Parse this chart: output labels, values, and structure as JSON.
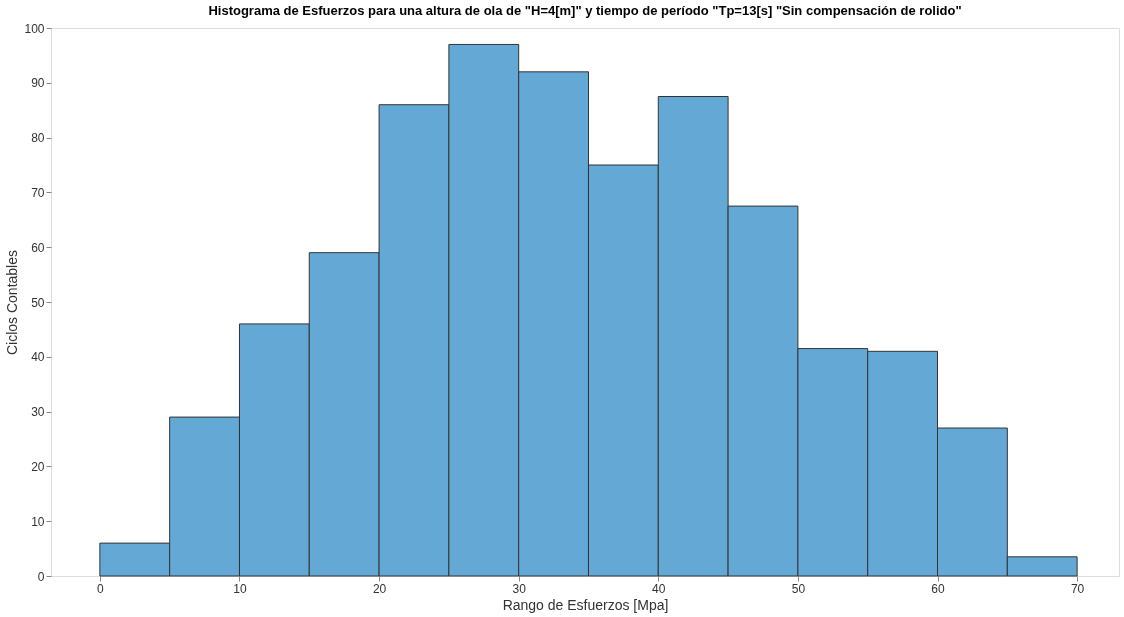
{
  "chart_data": {
    "type": "histogram",
    "title": "Histograma de Esfuerzos para una altura de ola de \"H=4[m]\" y tiempo de período \"Tp=13[s] \"Sin compensación de rolido\"",
    "xlabel": "Rango de Esfuerzos [Mpa]",
    "ylabel": "Ciclos Contables",
    "bins": [
      0,
      5,
      10,
      15,
      20,
      25,
      30,
      35,
      40,
      45,
      50,
      55,
      60,
      65,
      70
    ],
    "values": [
      6,
      29,
      46,
      59,
      86,
      97,
      92,
      75,
      87.5,
      67.5,
      41.5,
      41,
      27,
      3.5
    ],
    "color": "#64a9d6",
    "xlim": [
      -3.5,
      73
    ],
    "xticks": [
      0,
      10,
      20,
      30,
      40,
      50,
      60,
      70
    ],
    "ylim": [
      0,
      100
    ],
    "yticks": [
      0,
      10,
      20,
      30,
      40,
      50,
      60,
      70,
      80,
      90,
      100
    ],
    "grid": false
  }
}
